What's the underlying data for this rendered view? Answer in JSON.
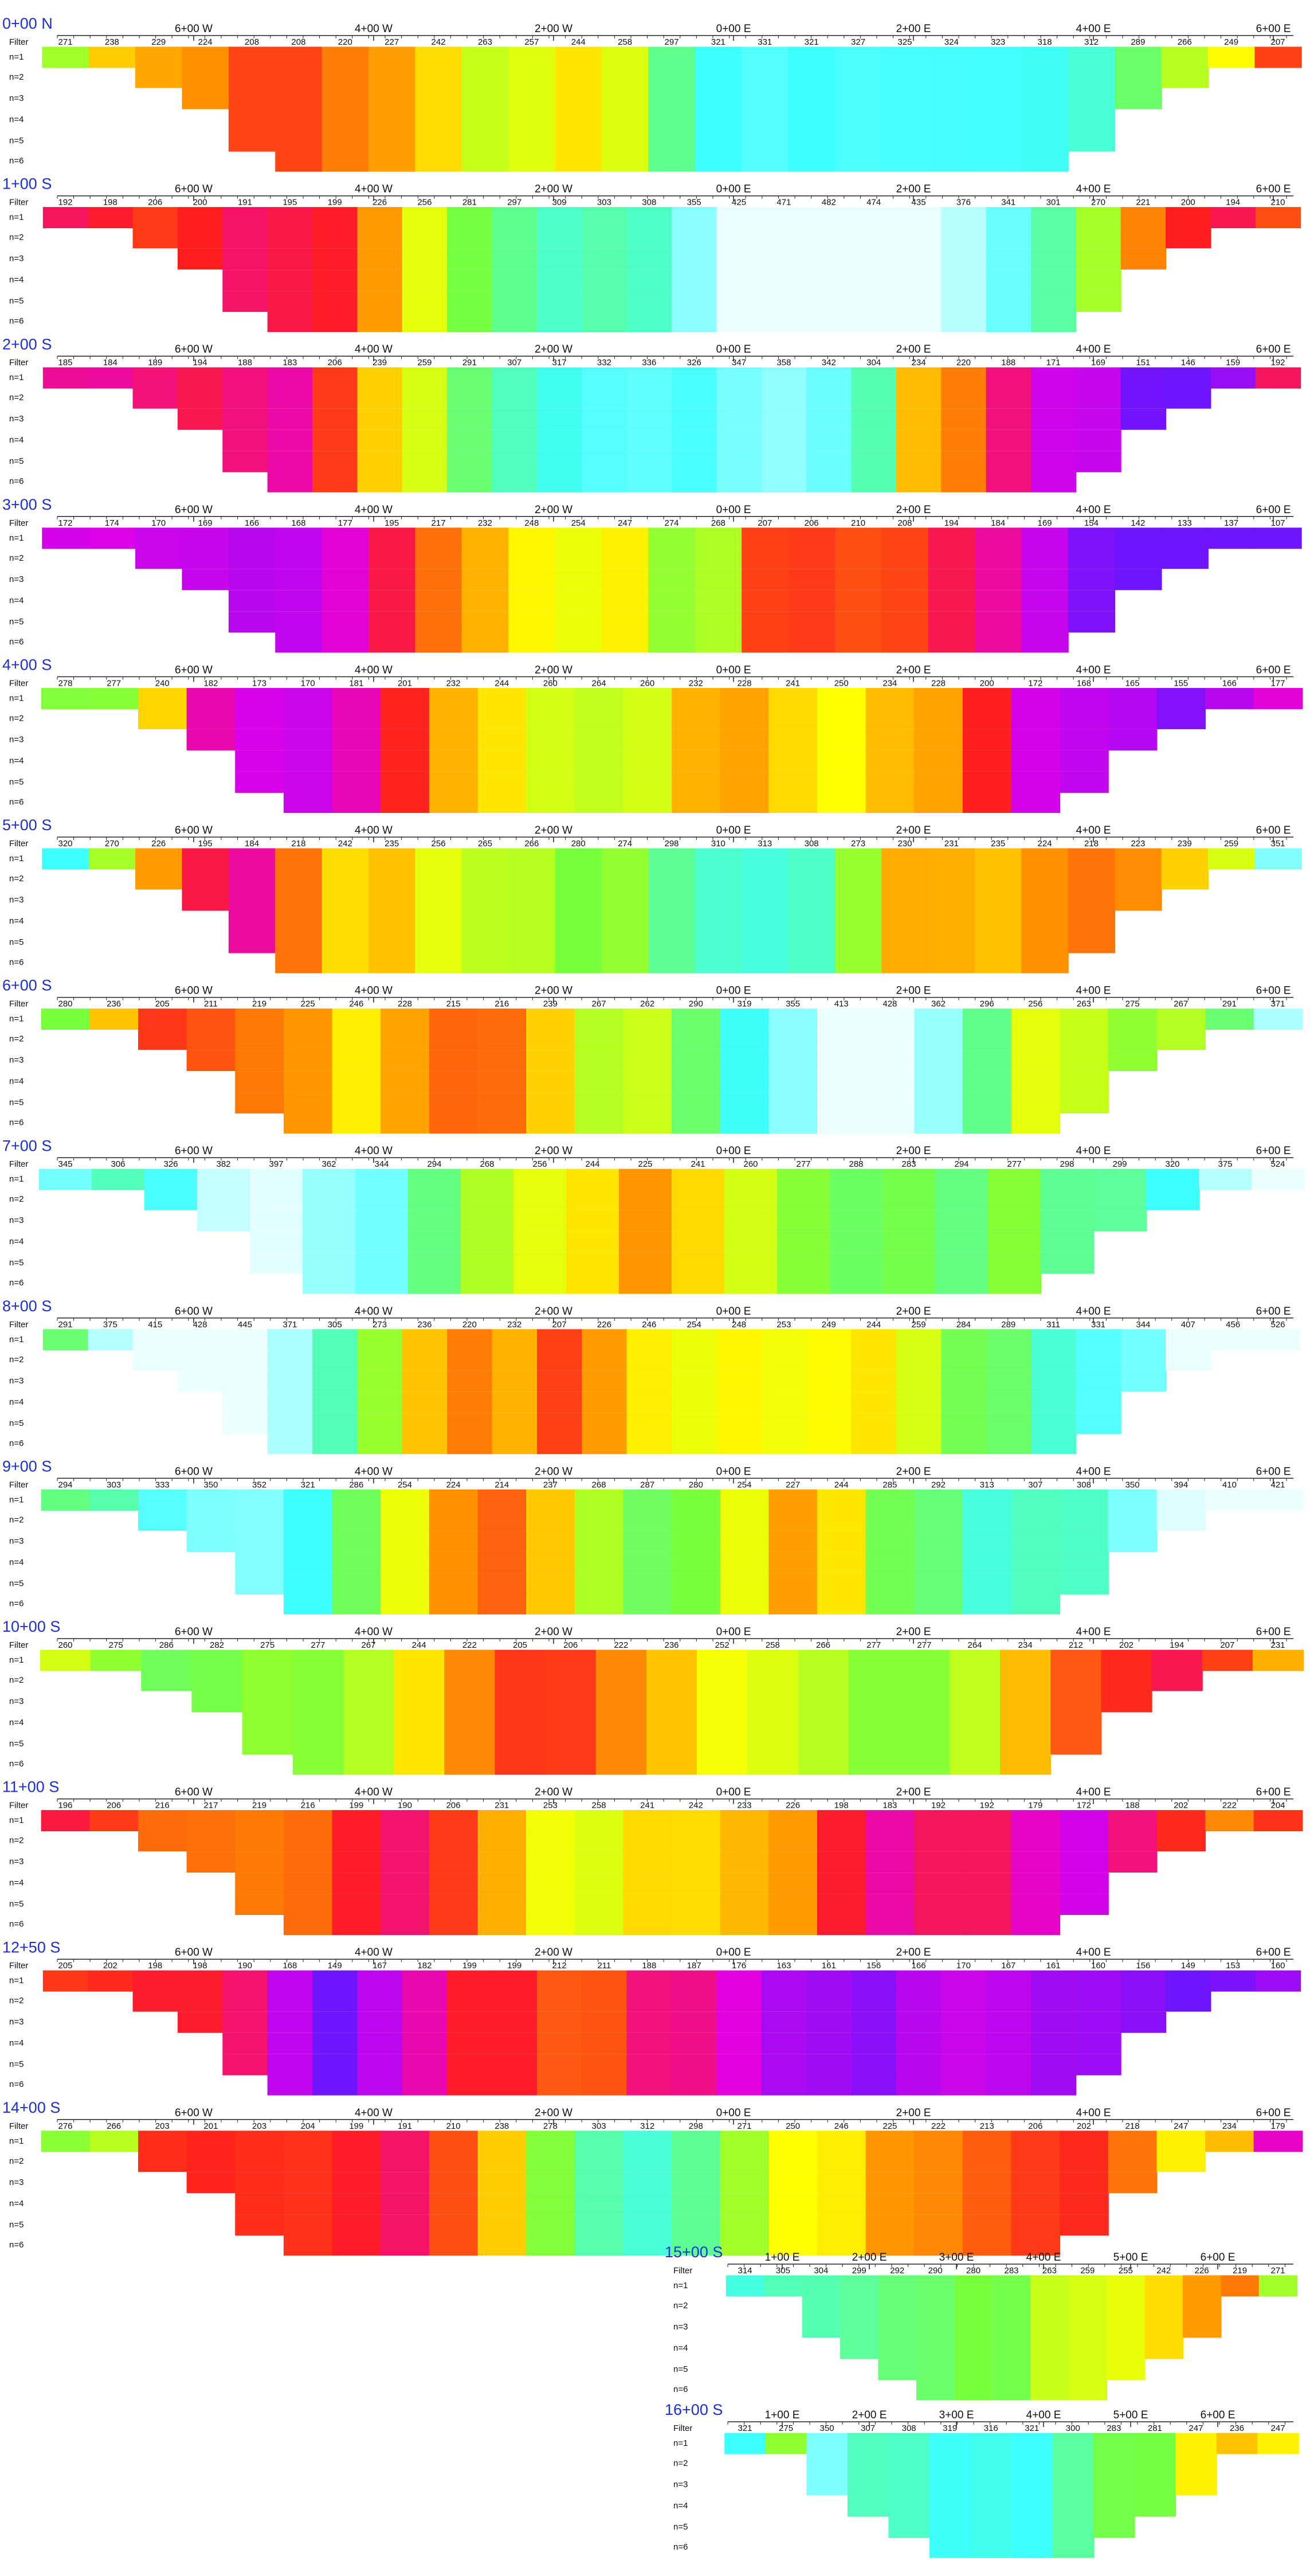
{
  "row_labels": [
    "Filter",
    "n=1",
    "n=2",
    "n=3",
    "n=4",
    "n=5",
    "n=6"
  ],
  "axis_labels": [
    "6+00 W",
    "4+00 W",
    "2+00 W",
    "0+00 E",
    "2+00 E",
    "4+00 E",
    "6+00 E"
  ],
  "panels": [
    {
      "title": "0+00 N",
      "filter": [
        271,
        238,
        229,
        224,
        208,
        208,
        220,
        227,
        242,
        263,
        257,
        244,
        258,
        297,
        321,
        331,
        321,
        327,
        325,
        324,
        323,
        318,
        312,
        289,
        266,
        249,
        207
      ]
    },
    {
      "title": "1+00 S",
      "filter": [
        192,
        198,
        206,
        200,
        191,
        195,
        199,
        226,
        256,
        281,
        297,
        309,
        303,
        308,
        355,
        425,
        471,
        482,
        474,
        435,
        376,
        341,
        301,
        270,
        221,
        200,
        194,
        210
      ]
    },
    {
      "title": "2+00 S",
      "filter": [
        185,
        184,
        189,
        194,
        188,
        183,
        206,
        239,
        259,
        291,
        307,
        317,
        332,
        336,
        326,
        347,
        358,
        342,
        304,
        234,
        220,
        188,
        171,
        169,
        151,
        146,
        159,
        192
      ]
    },
    {
      "title": "3+00 S",
      "filter": [
        172,
        174,
        170,
        169,
        166,
        168,
        177,
        195,
        217,
        232,
        248,
        254,
        247,
        274,
        268,
        207,
        206,
        210,
        208,
        194,
        184,
        169,
        154,
        142,
        133,
        137,
        107
      ]
    },
    {
      "title": "4+00 S",
      "filter": [
        278,
        277,
        240,
        182,
        173,
        170,
        181,
        201,
        232,
        244,
        260,
        264,
        260,
        232,
        228,
        241,
        250,
        234,
        228,
        200,
        172,
        168,
        165,
        155,
        166,
        177
      ]
    },
    {
      "title": "5+00 S",
      "filter": [
        320,
        270,
        226,
        195,
        184,
        218,
        242,
        235,
        256,
        265,
        266,
        280,
        274,
        298,
        310,
        313,
        308,
        273,
        230,
        231,
        235,
        224,
        218,
        223,
        239,
        259,
        351
      ]
    },
    {
      "title": "6+00 S",
      "filter": [
        280,
        236,
        205,
        211,
        219,
        225,
        246,
        228,
        215,
        216,
        239,
        267,
        262,
        290,
        319,
        355,
        413,
        428,
        362,
        296,
        256,
        263,
        275,
        267,
        291,
        371
      ]
    },
    {
      "title": "7+00 S",
      "filter": [
        345,
        306,
        326,
        382,
        397,
        362,
        344,
        294,
        268,
        256,
        244,
        225,
        241,
        260,
        277,
        288,
        283,
        294,
        277,
        298,
        299,
        320,
        375,
        524
      ]
    },
    {
      "title": "8+00 S",
      "filter": [
        291,
        375,
        415,
        428,
        445,
        371,
        305,
        273,
        236,
        220,
        232,
        207,
        226,
        246,
        254,
        248,
        253,
        249,
        244,
        259,
        284,
        289,
        311,
        331,
        344,
        407,
        456,
        526
      ]
    },
    {
      "title": "9+00 S",
      "filter": [
        294,
        303,
        333,
        350,
        352,
        321,
        286,
        254,
        224,
        214,
        237,
        268,
        287,
        280,
        254,
        227,
        244,
        285,
        292,
        313,
        307,
        308,
        350,
        394,
        410,
        421
      ]
    },
    {
      "title": "10+00 S",
      "filter": [
        260,
        275,
        286,
        282,
        275,
        277,
        267,
        244,
        222,
        205,
        206,
        222,
        236,
        252,
        258,
        266,
        277,
        277,
        264,
        234,
        212,
        202,
        194,
        207,
        231
      ]
    },
    {
      "title": "11+00 S",
      "filter": [
        196,
        206,
        216,
        217,
        219,
        216,
        199,
        190,
        206,
        231,
        253,
        258,
        241,
        242,
        233,
        226,
        198,
        183,
        192,
        192,
        179,
        172,
        188,
        202,
        222,
        204
      ]
    },
    {
      "title": "12+50 S",
      "filter": [
        205,
        202,
        198,
        198,
        190,
        168,
        149,
        167,
        182,
        199,
        199,
        212,
        211,
        188,
        187,
        176,
        163,
        161,
        156,
        166,
        170,
        167,
        161,
        160,
        156,
        149,
        153,
        160
      ]
    },
    {
      "title": "14+00 S",
      "filter": [
        276,
        266,
        203,
        201,
        203,
        204,
        199,
        191,
        210,
        238,
        278,
        303,
        312,
        298,
        271,
        250,
        246,
        225,
        222,
        213,
        206,
        202,
        218,
        247,
        234,
        179
      ]
    },
    {
      "title": "15+00 S",
      "axis_labels": [
        "1+00 E",
        "2+00 E",
        "3+00 E",
        "4+00 E",
        "5+00 E",
        "6+00 E"
      ],
      "filter": [
        314,
        305,
        304,
        299,
        292,
        290,
        280,
        283,
        263,
        259,
        255,
        242,
        226,
        219,
        271
      ]
    },
    {
      "title": "16+00 S",
      "axis_labels": [
        "1+00 E",
        "2+00 E",
        "3+00 E",
        "4+00 E",
        "5+00 E",
        "6+00 E"
      ],
      "filter": [
        321,
        275,
        350,
        307,
        308,
        319,
        316,
        321,
        300,
        283,
        281,
        247,
        236,
        247
      ]
    }
  ]
}
